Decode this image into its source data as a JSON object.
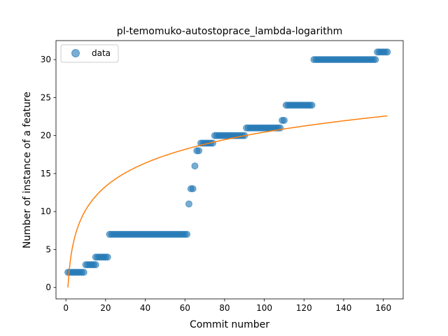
{
  "chart_data": {
    "type": "scatter",
    "title": "pl-temomuko-autostoprace_lambda-logarithm",
    "xlabel": "Commit number",
    "ylabel": "Number of instance of a feature",
    "xlim": [
      -5,
      170
    ],
    "ylim": [
      -1.5,
      32.5
    ],
    "xticks": [
      0,
      20,
      40,
      60,
      80,
      100,
      120,
      140,
      160
    ],
    "yticks": [
      0,
      5,
      10,
      15,
      20,
      25,
      30
    ],
    "grid": false,
    "legend": {
      "placement": "top-left",
      "entries": [
        "data"
      ]
    },
    "colors": {
      "data": "#1f77b4",
      "fit": "#ff7f0e"
    },
    "series": [
      {
        "name": "data",
        "kind": "scatter",
        "segments": [
          {
            "x_from": 1,
            "x_to": 9,
            "y": 2
          },
          {
            "x_from": 10,
            "x_to": 15,
            "y": 3
          },
          {
            "x_from": 15,
            "x_to": 21,
            "y": 4
          },
          {
            "x_from": 22,
            "x_to": 61,
            "y": 7
          },
          {
            "x_from": 62,
            "x_to": 62,
            "y": 11
          },
          {
            "x_from": 63,
            "x_to": 64,
            "y": 13
          },
          {
            "x_from": 65,
            "x_to": 65,
            "y": 16
          },
          {
            "x_from": 66,
            "x_to": 67,
            "y": 18
          },
          {
            "x_from": 68,
            "x_to": 74,
            "y": 19
          },
          {
            "x_from": 75,
            "x_to": 90,
            "y": 20
          },
          {
            "x_from": 91,
            "x_to": 108,
            "y": 21
          },
          {
            "x_from": 109,
            "x_to": 110,
            "y": 22
          },
          {
            "x_from": 111,
            "x_to": 124,
            "y": 24
          },
          {
            "x_from": 125,
            "x_to": 156,
            "y": 30
          },
          {
            "x_from": 157,
            "x_to": 162,
            "y": 31
          }
        ]
      },
      {
        "name": "",
        "kind": "line",
        "function": "log",
        "a": 4.44,
        "x_from": 1,
        "x_to": 162
      }
    ]
  }
}
